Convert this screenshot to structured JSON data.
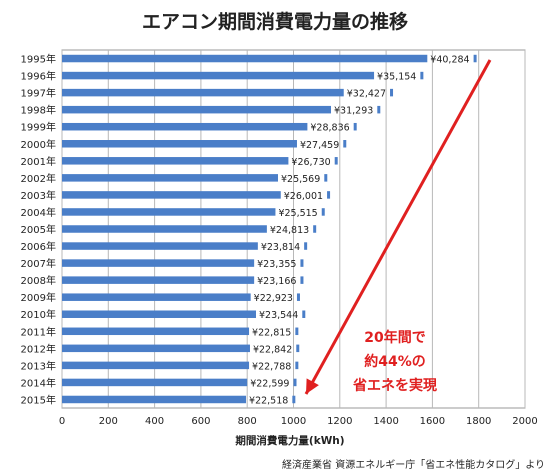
{
  "chart_data": {
    "type": "bar",
    "orientation": "horizontal",
    "title": "エアコン期間消費電力量の推移",
    "xlabel": "期間消費電力量(kWh)",
    "ylabel": "",
    "xlim": [
      0,
      2000
    ],
    "xticks": [
      "0",
      "200",
      "400",
      "600",
      "800",
      "1000",
      "1200",
      "1400",
      "1600",
      "1800",
      "2000"
    ],
    "grid": true,
    "categories": [
      "1995年",
      "1996年",
      "1997年",
      "1998年",
      "1999年",
      "2000年",
      "2001年",
      "2002年",
      "2003年",
      "2004年",
      "2005年",
      "2006年",
      "2007年",
      "2008年",
      "2009年",
      "2010年",
      "2011年",
      "2012年",
      "2013年",
      "2014年",
      "2015年"
    ],
    "values": [
      1578,
      1348,
      1217,
      1162,
      1060,
      1015,
      978,
      933,
      945,
      922,
      885,
      846,
      830,
      830,
      815,
      838,
      808,
      812,
      808,
      800,
      795
    ],
    "price_labels": [
      "¥40,284",
      "¥35,154",
      "¥32,427",
      "¥31,293",
      "¥28,836",
      "¥27,459",
      "¥26,730",
      "¥25,569",
      "¥26,001",
      "¥25,515",
      "¥24,813",
      "¥23,814",
      "¥23,355",
      "¥23,166",
      "¥22,923",
      "¥23,544",
      "¥22,815",
      "¥22,842",
      "¥22,788",
      "¥22,599",
      "¥22,518"
    ],
    "bar_color": "#4a7ec8",
    "annotation": {
      "lines": [
        "20年間で",
        "約44%の",
        "省エネを実現"
      ],
      "color": "#e02020"
    },
    "source": "経済産業省 資源エネルギー庁「省エネ性能カタログ」より"
  }
}
